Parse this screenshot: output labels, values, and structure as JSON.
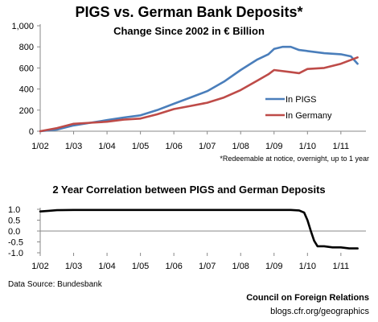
{
  "chart_data": [
    {
      "type": "line",
      "title": "PIGS vs. German Bank Deposits*",
      "subtitle": "Change Since 2002 in € Billion",
      "footnote": "*Redeemable at notice, overnight, up to 1 year",
      "x_tick_labels": [
        "1/02",
        "1/03",
        "1/04",
        "1/05",
        "1/06",
        "1/07",
        "1/08",
        "1/09",
        "1/10",
        "1/11"
      ],
      "y_tick_labels": [
        "0",
        "200",
        "400",
        "600",
        "800",
        "1,000"
      ],
      "ylim": [
        0,
        1000
      ],
      "grid": false,
      "legend_position": "right",
      "series": [
        {
          "name": "In PIGS",
          "color": "#4a7ebb",
          "x": [
            2002.0,
            2002.5,
            2003.0,
            2003.5,
            2004.0,
            2004.5,
            2005.0,
            2005.5,
            2006.0,
            2006.5,
            2007.0,
            2007.5,
            2008.0,
            2008.5,
            2008.83,
            2009.0,
            2009.25,
            2009.5,
            2009.75,
            2010.0,
            2010.5,
            2011.0,
            2011.3,
            2011.5
          ],
          "y": [
            0,
            15,
            55,
            80,
            105,
            130,
            150,
            200,
            260,
            320,
            380,
            470,
            580,
            680,
            730,
            780,
            800,
            800,
            770,
            760,
            740,
            730,
            710,
            640
          ]
        },
        {
          "name": "In Germany",
          "color": "#be4b48",
          "x": [
            2002.0,
            2002.5,
            2003.0,
            2003.5,
            2004.0,
            2004.5,
            2005.0,
            2005.5,
            2006.0,
            2006.5,
            2007.0,
            2007.5,
            2008.0,
            2008.5,
            2008.83,
            2009.0,
            2009.5,
            2009.75,
            2010.0,
            2010.5,
            2011.0,
            2011.5
          ],
          "y": [
            0,
            30,
            70,
            80,
            90,
            110,
            120,
            160,
            210,
            240,
            270,
            320,
            390,
            480,
            540,
            580,
            560,
            550,
            590,
            600,
            640,
            700
          ]
        }
      ]
    },
    {
      "type": "line",
      "title": "2 Year Correlation between PIGS and German Deposits",
      "x_tick_labels": [
        "1/02",
        "1/03",
        "1/04",
        "1/05",
        "1/06",
        "1/07",
        "1/08",
        "1/09",
        "1/10",
        "1/11"
      ],
      "y_tick_labels": [
        "1.0",
        "0.5",
        "0.0",
        "-0.5",
        "-1.0"
      ],
      "ylim": [
        -1.0,
        1.0
      ],
      "grid": false,
      "series": [
        {
          "color": "#000000",
          "x": [
            2002.0,
            2002.25,
            2002.5,
            2003.0,
            2004.0,
            2005.0,
            2006.0,
            2007.0,
            2008.0,
            2009.0,
            2009.5,
            2009.75,
            2009.9,
            2010.0,
            2010.1,
            2010.2,
            2010.3,
            2010.5,
            2010.75,
            2011.0,
            2011.25,
            2011.5
          ],
          "y": [
            0.9,
            0.93,
            0.96,
            0.97,
            0.97,
            0.97,
            0.97,
            0.97,
            0.97,
            0.97,
            0.97,
            0.95,
            0.85,
            0.5,
            0.0,
            -0.45,
            -0.7,
            -0.7,
            -0.75,
            -0.75,
            -0.8,
            -0.8
          ]
        }
      ]
    }
  ],
  "source": "Data Source: Bundesbank",
  "credit": "Council on Foreign Relations",
  "url": "blogs.cfr.org/geographics"
}
